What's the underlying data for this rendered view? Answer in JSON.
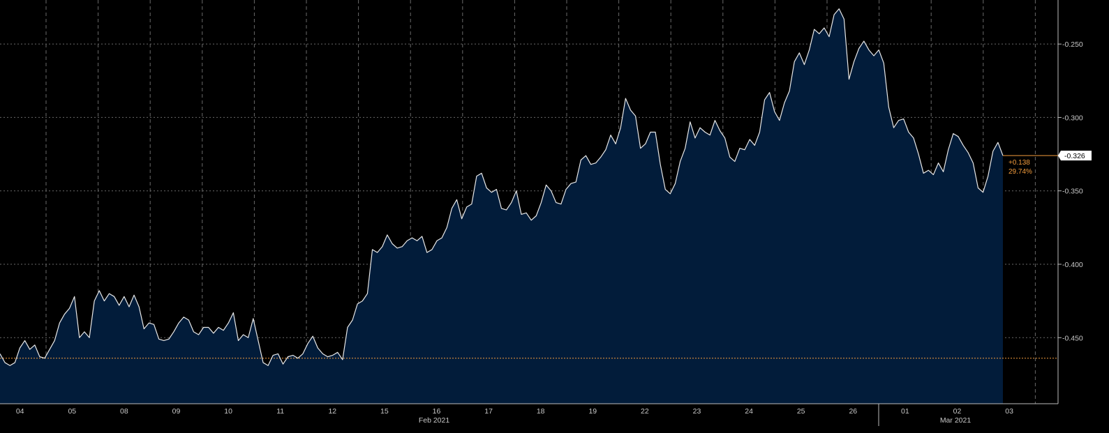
{
  "colors": {
    "background": "#000000",
    "area_fill": "#021c3a",
    "line": "#e8e8e8",
    "grid": "#6a6a6a",
    "reference": "#f39c3c",
    "annotation": "#f39c3c"
  },
  "chart_data": {
    "type": "area",
    "x_tick_labels": [
      "04",
      "05",
      "08",
      "09",
      "10",
      "11",
      "12",
      "15",
      "16",
      "17",
      "18",
      "19",
      "22",
      "23",
      "24",
      "25",
      "26",
      "01",
      "02",
      "03"
    ],
    "month_labels": [
      "Feb 2021",
      "Mar 2021"
    ],
    "y_ticks": [
      -0.45,
      -0.4,
      -0.35,
      -0.3,
      -0.25
    ],
    "y_tick_labels": [
      "-0.450",
      "-0.400",
      "-0.350",
      "-0.300",
      "-0.250"
    ],
    "ylim": [
      -0.495,
      -0.22
    ],
    "grid": true,
    "reference_value": -0.464,
    "last_value": -0.326,
    "last_label": "-0.326",
    "change_abs": "+0.138",
    "change_pct": "29.74%",
    "series": [
      {
        "values": [
          -0.461,
          -0.467,
          -0.469,
          -0.467,
          -0.457,
          -0.452,
          -0.458,
          -0.455,
          -0.463,
          -0.464,
          -0.458,
          -0.452,
          -0.44,
          -0.434,
          -0.43,
          -0.422,
          -0.45,
          -0.446,
          -0.45,
          -0.425,
          -0.418,
          -0.425,
          -0.42,
          -0.422,
          -0.428,
          -0.422,
          -0.429,
          -0.421,
          -0.429,
          -0.444,
          -0.44,
          -0.441,
          -0.451,
          -0.452,
          -0.451,
          -0.446,
          -0.44,
          -0.436,
          -0.438,
          -0.446,
          -0.448,
          -0.443,
          -0.443,
          -0.447,
          -0.443,
          -0.445,
          -0.44,
          -0.433,
          -0.452,
          -0.448,
          -0.45,
          -0.437,
          -0.452,
          -0.467,
          -0.469,
          -0.462,
          -0.461,
          -0.468,
          -0.463,
          -0.462,
          -0.464,
          -0.461,
          -0.454,
          -0.449,
          -0.457,
          -0.461,
          -0.463,
          -0.462,
          -0.46,
          -0.465,
          -0.443,
          -0.438,
          -0.427,
          -0.425,
          -0.42,
          -0.39,
          -0.392,
          -0.388,
          -0.38,
          -0.386,
          -0.389,
          -0.388,
          -0.384,
          -0.382,
          -0.384,
          -0.381,
          -0.392,
          -0.39,
          -0.384,
          -0.382,
          -0.375,
          -0.362,
          -0.356,
          -0.369,
          -0.361,
          -0.359,
          -0.34,
          -0.338,
          -0.348,
          -0.351,
          -0.349,
          -0.362,
          -0.363,
          -0.358,
          -0.35,
          -0.366,
          -0.365,
          -0.37,
          -0.367,
          -0.358,
          -0.346,
          -0.35,
          -0.358,
          -0.359,
          -0.349,
          -0.345,
          -0.344,
          -0.329,
          -0.326,
          -0.332,
          -0.331,
          -0.327,
          -0.322,
          -0.312,
          -0.318,
          -0.307,
          -0.287,
          -0.295,
          -0.299,
          -0.321,
          -0.318,
          -0.31,
          -0.31,
          -0.332,
          -0.349,
          -0.352,
          -0.345,
          -0.33,
          -0.321,
          -0.303,
          -0.314,
          -0.307,
          -0.31,
          -0.312,
          -0.302,
          -0.309,
          -0.314,
          -0.327,
          -0.33,
          -0.321,
          -0.322,
          -0.315,
          -0.319,
          -0.31,
          -0.288,
          -0.283,
          -0.296,
          -0.302,
          -0.29,
          -0.282,
          -0.262,
          -0.256,
          -0.264,
          -0.254,
          -0.24,
          -0.243,
          -0.239,
          -0.245,
          -0.23,
          -0.226,
          -0.233,
          -0.274,
          -0.262,
          -0.253,
          -0.248,
          -0.254,
          -0.258,
          -0.254,
          -0.263,
          -0.293,
          -0.307,
          -0.302,
          -0.301,
          -0.31,
          -0.314,
          -0.325,
          -0.338,
          -0.336,
          -0.339,
          -0.331,
          -0.337,
          -0.322,
          -0.311,
          -0.313,
          -0.319,
          -0.324,
          -0.331,
          -0.348,
          -0.351,
          -0.34,
          -0.323,
          -0.317,
          -0.326
        ]
      }
    ]
  }
}
